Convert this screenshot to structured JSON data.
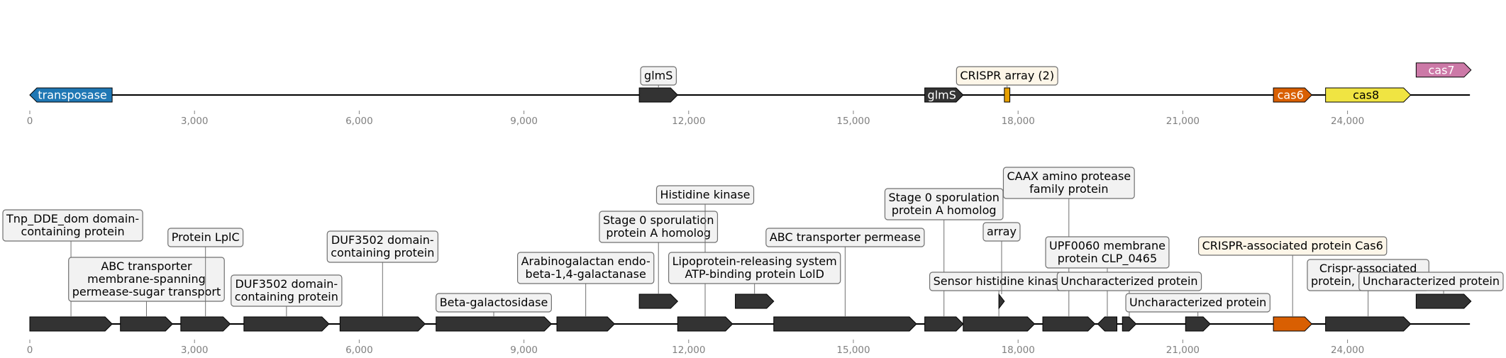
{
  "colors": {
    "dark": "#333333",
    "transposase": "#1f77b4",
    "cas6": "#d95f02",
    "cas8": "#f0e442",
    "cas7": "#cc79a7",
    "crispr": "#e69f00",
    "label_bg": "#f2f2f2",
    "label_bg_crispr": "#fdf6e8",
    "label_border": "#707070",
    "axis_text": "#808080"
  },
  "chart_data": [
    {
      "type": "genome-map",
      "title": "",
      "range": [
        0,
        26100
      ],
      "ticks": [
        0,
        3000,
        6000,
        9000,
        12000,
        15000,
        18000,
        21000,
        24000
      ],
      "tick_labels": [
        "0",
        "3,000",
        "6,000",
        "9,000",
        "12,000",
        "15,000",
        "18,000",
        "21,000",
        "24,000"
      ],
      "features": [
        {
          "name": "transposase",
          "start": 0,
          "end": 1500,
          "strand": -1,
          "color": "transposase",
          "label_inside": "transposase"
        },
        {
          "name": "glmS",
          "start": 11100,
          "end": 11800,
          "strand": 1,
          "color": "dark",
          "label_above": "glmS"
        },
        {
          "name": "glmS",
          "start": 16300,
          "end": 17000,
          "strand": 1,
          "color": "dark",
          "label_inside": "glmS"
        },
        {
          "name": "CRISPR array (2)",
          "start": 17750,
          "end": 17850,
          "strand": 0,
          "color": "crispr",
          "label_above": "CRISPR array (2)"
        },
        {
          "name": "cas6",
          "start": 22650,
          "end": 23350,
          "strand": 1,
          "color": "cas6",
          "label_inside": "cas6"
        },
        {
          "name": "cas8",
          "start": 23600,
          "end": 25150,
          "strand": 1,
          "color": "cas8",
          "label_inside": "cas8"
        },
        {
          "name": "cas7",
          "start": 25250,
          "end": 26250,
          "strand": 1,
          "color": "cas7",
          "label_inside": "cas7",
          "lane": 1
        }
      ]
    },
    {
      "type": "genome-map",
      "title": "",
      "range": [
        0,
        26100
      ],
      "ticks": [
        0,
        3000,
        6000,
        9000,
        12000,
        15000,
        18000,
        21000,
        24000
      ],
      "tick_labels": [
        "0",
        "3,000",
        "6,000",
        "9,000",
        "12,000",
        "15,000",
        "18,000",
        "21,000",
        "24,000"
      ],
      "features": [
        {
          "start": 0,
          "end": 1500,
          "strand": 1,
          "color": "dark",
          "label": "Tnp_DDE_dom domain-\ncontaining protein"
        },
        {
          "start": 1650,
          "end": 2600,
          "strand": 1,
          "color": "dark",
          "label": "ABC transporter\nmembrane-spanning\npermease-sugar transport"
        },
        {
          "start": 2750,
          "end": 3650,
          "strand": 1,
          "color": "dark",
          "label": "Protein LplC"
        },
        {
          "start": 3900,
          "end": 5450,
          "strand": 1,
          "color": "dark",
          "label": "DUF3502 domain-\ncontaining protein"
        },
        {
          "start": 5650,
          "end": 7200,
          "strand": 1,
          "color": "dark",
          "label": "DUF3502 domain-\ncontaining protein"
        },
        {
          "start": 7400,
          "end": 9500,
          "strand": 1,
          "color": "dark",
          "label": "Beta-galactosidase"
        },
        {
          "start": 9600,
          "end": 10650,
          "strand": 1,
          "color": "dark",
          "label": "Arabinogalactan endo-\nbeta-1,4-galactanase"
        },
        {
          "start": 11100,
          "end": 11800,
          "strand": 1,
          "color": "dark",
          "label": "Stage 0 sporulation\nprotein A homolog",
          "lane": 1
        },
        {
          "start": 11800,
          "end": 12800,
          "strand": 1,
          "color": "dark",
          "label": "Histidine kinase"
        },
        {
          "start": 12850,
          "end": 13550,
          "strand": 1,
          "color": "dark",
          "label": "Lipoprotein-releasing system\nATP-binding protein LolD",
          "lane": 1
        },
        {
          "start": 13550,
          "end": 16150,
          "strand": 1,
          "color": "dark",
          "label": "ABC transporter permease"
        },
        {
          "start": 16300,
          "end": 17000,
          "strand": 1,
          "color": "dark",
          "label": "Stage 0 sporulation\nprotein A homolog"
        },
        {
          "start": 17000,
          "end": 18300,
          "strand": 1,
          "color": "dark",
          "label": "Sensor histidine kinase"
        },
        {
          "start": 17650,
          "end": 17750,
          "strand": 1,
          "color": "dark",
          "label": "array",
          "lane": 1
        },
        {
          "start": 18450,
          "end": 19400,
          "strand": 1,
          "color": "dark",
          "label": "CAAX amino protease\nfamily protein"
        },
        {
          "start": 19450,
          "end": 19800,
          "strand": -1,
          "color": "dark",
          "label": "UPF0060 membrane\nprotein CLP_0465"
        },
        {
          "start": 19900,
          "end": 20150,
          "strand": 1,
          "color": "dark",
          "label": "Uncharacterized protein"
        },
        {
          "start": 21050,
          "end": 21500,
          "strand": 1,
          "color": "dark",
          "label": "Uncharacterized protein"
        },
        {
          "start": 22650,
          "end": 23350,
          "strand": 1,
          "color": "cas6",
          "label": "CRISPR-associated protein Cas6",
          "label_style": "crispr"
        },
        {
          "start": 23600,
          "end": 25150,
          "strand": 1,
          "color": "dark",
          "label": "Crispr-associated\nprotein, Csh1 family"
        },
        {
          "start": 25250,
          "end": 26250,
          "strand": 1,
          "color": "dark",
          "label": "Uncharacterized protein",
          "lane": 1
        }
      ]
    }
  ]
}
